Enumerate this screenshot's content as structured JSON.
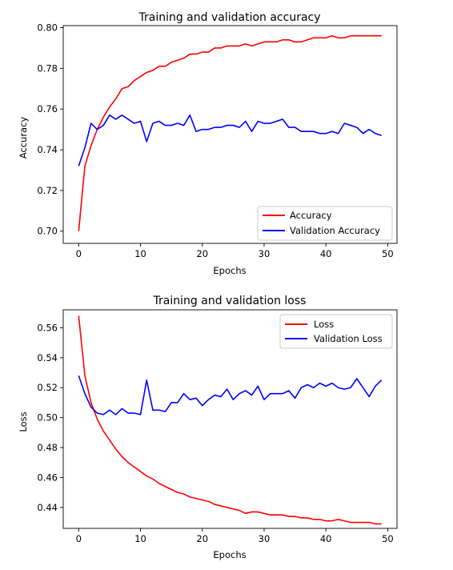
{
  "chart_data": [
    {
      "type": "line",
      "title": "Training and validation accuracy",
      "xlabel": "Epochs",
      "ylabel": "Accuracy",
      "xlim": [
        -2.5,
        51.5
      ],
      "ylim": [
        0.694,
        0.801
      ],
      "xticks": [
        0,
        10,
        20,
        30,
        40,
        50
      ],
      "yticks": [
        0.7,
        0.72,
        0.74,
        0.76,
        0.78,
        0.8
      ],
      "ytick_labels": [
        "0.70",
        "0.72",
        "0.74",
        "0.76",
        "0.78",
        "0.80"
      ],
      "grid": false,
      "legend_position": "lower-right",
      "series": [
        {
          "name": "Accuracy",
          "color": "#ff0000",
          "x": [
            0,
            1,
            2,
            3,
            4,
            5,
            6,
            7,
            8,
            9,
            10,
            11,
            12,
            13,
            14,
            15,
            16,
            17,
            18,
            19,
            20,
            21,
            22,
            23,
            24,
            25,
            26,
            27,
            28,
            29,
            30,
            31,
            32,
            33,
            34,
            35,
            36,
            37,
            38,
            39,
            40,
            41,
            42,
            43,
            44,
            45,
            46,
            47,
            48,
            49
          ],
          "values": [
            0.7,
            0.732,
            0.742,
            0.75,
            0.756,
            0.761,
            0.765,
            0.77,
            0.771,
            0.774,
            0.776,
            0.778,
            0.779,
            0.781,
            0.781,
            0.783,
            0.784,
            0.785,
            0.787,
            0.787,
            0.788,
            0.788,
            0.79,
            0.79,
            0.791,
            0.791,
            0.791,
            0.792,
            0.791,
            0.792,
            0.793,
            0.793,
            0.793,
            0.794,
            0.794,
            0.793,
            0.793,
            0.794,
            0.795,
            0.795,
            0.795,
            0.796,
            0.795,
            0.795,
            0.796,
            0.796,
            0.796,
            0.796,
            0.796,
            0.796
          ]
        },
        {
          "name": "Validation Accuracy",
          "color": "#0000ff",
          "x": [
            0,
            1,
            2,
            3,
            4,
            5,
            6,
            7,
            8,
            9,
            10,
            11,
            12,
            13,
            14,
            15,
            16,
            17,
            18,
            19,
            20,
            21,
            22,
            23,
            24,
            25,
            26,
            27,
            28,
            29,
            30,
            31,
            32,
            33,
            34,
            35,
            36,
            37,
            38,
            39,
            40,
            41,
            42,
            43,
            44,
            45,
            46,
            47,
            48,
            49
          ],
          "values": [
            0.732,
            0.741,
            0.753,
            0.75,
            0.752,
            0.757,
            0.755,
            0.757,
            0.755,
            0.753,
            0.754,
            0.744,
            0.753,
            0.754,
            0.752,
            0.752,
            0.753,
            0.752,
            0.757,
            0.749,
            0.75,
            0.75,
            0.751,
            0.751,
            0.752,
            0.752,
            0.751,
            0.754,
            0.749,
            0.754,
            0.753,
            0.753,
            0.754,
            0.755,
            0.751,
            0.751,
            0.749,
            0.749,
            0.749,
            0.748,
            0.748,
            0.749,
            0.748,
            0.753,
            0.752,
            0.751,
            0.748,
            0.75,
            0.748,
            0.747
          ]
        }
      ]
    },
    {
      "type": "line",
      "title": "Training and validation loss",
      "xlabel": "Epochs",
      "ylabel": "Loss",
      "xlim": [
        -2.5,
        51.5
      ],
      "ylim": [
        0.426,
        0.572
      ],
      "xticks": [
        0,
        10,
        20,
        30,
        40,
        50
      ],
      "yticks": [
        0.44,
        0.46,
        0.48,
        0.5,
        0.52,
        0.54,
        0.56
      ],
      "ytick_labels": [
        "0.44",
        "0.46",
        "0.48",
        "0.50",
        "0.52",
        "0.54",
        "0.56"
      ],
      "grid": false,
      "legend_position": "upper-right",
      "series": [
        {
          "name": "Loss",
          "color": "#ff0000",
          "x": [
            0,
            1,
            2,
            3,
            4,
            5,
            6,
            7,
            8,
            9,
            10,
            11,
            12,
            13,
            14,
            15,
            16,
            17,
            18,
            19,
            20,
            21,
            22,
            23,
            24,
            25,
            26,
            27,
            28,
            29,
            30,
            31,
            32,
            33,
            34,
            35,
            36,
            37,
            38,
            39,
            40,
            41,
            42,
            43,
            44,
            45,
            46,
            47,
            48,
            49
          ],
          "values": [
            0.568,
            0.528,
            0.51,
            0.499,
            0.491,
            0.485,
            0.479,
            0.474,
            0.47,
            0.467,
            0.464,
            0.461,
            0.459,
            0.456,
            0.454,
            0.452,
            0.45,
            0.449,
            0.447,
            0.446,
            0.445,
            0.444,
            0.442,
            0.441,
            0.44,
            0.439,
            0.438,
            0.436,
            0.437,
            0.437,
            0.436,
            0.435,
            0.435,
            0.435,
            0.434,
            0.434,
            0.433,
            0.433,
            0.432,
            0.432,
            0.431,
            0.431,
            0.432,
            0.431,
            0.43,
            0.43,
            0.43,
            0.43,
            0.429,
            0.429
          ]
        },
        {
          "name": "Validation Loss",
          "color": "#0000ff",
          "x": [
            0,
            1,
            2,
            3,
            4,
            5,
            6,
            7,
            8,
            9,
            10,
            11,
            12,
            13,
            14,
            15,
            16,
            17,
            18,
            19,
            20,
            21,
            22,
            23,
            24,
            25,
            26,
            27,
            28,
            29,
            30,
            31,
            32,
            33,
            34,
            35,
            36,
            37,
            38,
            39,
            40,
            41,
            42,
            43,
            44,
            45,
            46,
            47,
            48,
            49
          ],
          "values": [
            0.528,
            0.516,
            0.507,
            0.503,
            0.502,
            0.505,
            0.502,
            0.506,
            0.503,
            0.503,
            0.502,
            0.525,
            0.505,
            0.505,
            0.504,
            0.51,
            0.51,
            0.516,
            0.512,
            0.513,
            0.508,
            0.512,
            0.515,
            0.514,
            0.519,
            0.512,
            0.516,
            0.518,
            0.515,
            0.521,
            0.512,
            0.516,
            0.516,
            0.516,
            0.518,
            0.513,
            0.52,
            0.522,
            0.52,
            0.523,
            0.521,
            0.523,
            0.52,
            0.519,
            0.52,
            0.526,
            0.52,
            0.514,
            0.521,
            0.525
          ]
        }
      ]
    }
  ]
}
